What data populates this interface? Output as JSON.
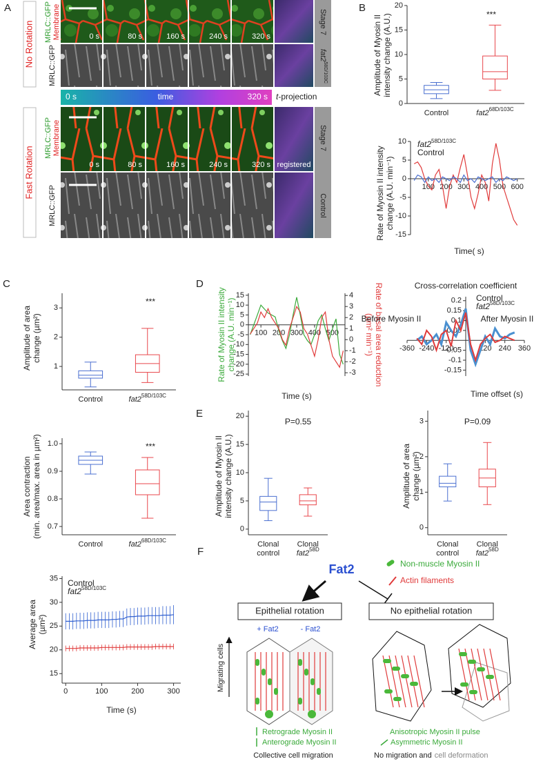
{
  "panel_a": {
    "label": "A",
    "top": {
      "condition": "No Rotation",
      "channel_green": "MRLC::GFP",
      "channel_red": "Membrane",
      "channel_gray": "MRLC::GFP",
      "times": [
        "0 s",
        "80 s",
        "160 s",
        "240 s",
        "320 s"
      ],
      "stage": "Stage 7",
      "genotype": "fat2",
      "genotype_superscript": "58D/103C"
    },
    "time_bar": {
      "start": "0 s",
      "label": "time",
      "end": "320 s",
      "projection_t": "t",
      "projection": "-projection"
    },
    "bottom": {
      "condition": "Fast Rotation",
      "channel_green": "MRLC::GFP",
      "channel_red": "Membrane",
      "channel_gray": "MRLC::GFP",
      "times": [
        "0 s",
        "80 s",
        "160 s",
        "240 s",
        "320 s"
      ],
      "registered": "registered",
      "stage": "Stage 7",
      "genotype": "Control"
    }
  },
  "chart_data": [
    {
      "type": "box",
      "panel_label": "B",
      "ylabel": [
        "Amplitude of Myosin II",
        "intensity change (A.U.)"
      ],
      "categories": [
        "Control",
        "fat2"
      ],
      "category_superscripts": [
        null,
        "68D/103C"
      ],
      "colors": [
        "#4a6fd0",
        "#e8464b"
      ],
      "boxes": [
        {
          "min": 1,
          "q1": 2,
          "median": 2.8,
          "q3": 3.7,
          "max": 4.3
        },
        {
          "min": 2.7,
          "q1": 5,
          "median": 6.5,
          "q3": 9.7,
          "max": 16
        }
      ],
      "ylim": [
        0,
        20
      ],
      "yticks": [
        0,
        5,
        10,
        15,
        20
      ],
      "annotations": [
        "***"
      ]
    },
    {
      "type": "line",
      "ylabel": [
        "Rate of Myosin II intensity",
        "change (A.U. min⁻¹)"
      ],
      "xlabel": "Time( s)",
      "x": [
        20,
        40,
        60,
        80,
        100,
        120,
        140,
        160,
        180,
        200,
        220,
        240,
        260,
        280,
        300,
        320,
        340,
        360,
        380,
        400,
        420,
        440,
        460,
        480,
        500,
        520,
        540,
        560,
        580,
        600
      ],
      "series": [
        {
          "name": "fat2",
          "superscript": "58D/103C",
          "color": "#e03a3a",
          "values": [
            4,
            4.5,
            3,
            0,
            -2,
            -3,
            1,
            2.5,
            -2,
            -8,
            -2,
            1,
            -1,
            3,
            6.5,
            1,
            -5,
            -8,
            -4,
            1,
            -1,
            -6,
            4,
            9.5,
            5,
            -2,
            -5,
            -8,
            -11,
            -12.5
          ]
        },
        {
          "name": "Control",
          "color": "#4a6fd0",
          "values": [
            -0.5,
            1,
            0.5,
            -1,
            0.5,
            -0.5,
            0,
            -1,
            0.5,
            0,
            -0.5,
            0.5,
            0,
            -1,
            1,
            -0.5,
            0,
            -1,
            0.5,
            0,
            -0.5,
            0,
            0.5,
            -1,
            0,
            -0.5,
            0.5,
            0,
            -0.5,
            0
          ]
        }
      ],
      "xlim": [
        0,
        640
      ],
      "xticks": [
        100,
        200,
        300,
        400,
        500,
        600
      ],
      "ylim": [
        -15,
        10
      ],
      "yticks": [
        10,
        5,
        0,
        -5,
        -10,
        -15
      ]
    },
    {
      "type": "box",
      "panel_label": "C",
      "ylabel": [
        "Amplitude of area",
        "change (µm²)"
      ],
      "categories": [
        "Control",
        "fat2"
      ],
      "category_superscripts": [
        null,
        "58D/103C"
      ],
      "colors": [
        "#4a6fd0",
        "#e8464b"
      ],
      "boxes": [
        {
          "min": 0.3,
          "q1": 0.6,
          "median": 0.7,
          "q3": 0.85,
          "max": 1.15
        },
        {
          "min": 0.45,
          "q1": 0.8,
          "median": 1.1,
          "q3": 1.4,
          "max": 2.3
        }
      ],
      "ylim": [
        0.2,
        3.5
      ],
      "yticks": [
        1,
        2,
        3
      ],
      "annotations": [
        "***"
      ]
    },
    {
      "type": "box",
      "ylabel": [
        "Area contraction",
        "(min. area/max. area in µm²)"
      ],
      "categories": [
        "Control",
        "fat2"
      ],
      "category_superscripts": [
        null,
        "68D/103C"
      ],
      "colors": [
        "#4a6fd0",
        "#e8464b"
      ],
      "boxes": [
        {
          "min": 0.89,
          "q1": 0.925,
          "median": 0.94,
          "q3": 0.955,
          "max": 0.97
        },
        {
          "min": 0.73,
          "q1": 0.815,
          "median": 0.855,
          "q3": 0.905,
          "max": 0.95
        }
      ],
      "ylim": [
        0.67,
        1.02
      ],
      "yticks": [
        0.7,
        0.8,
        0.9,
        {
          "value": 1,
          "label": "1.0"
        }
      ],
      "annotations": [
        "***"
      ]
    },
    {
      "type": "line",
      "ylabel": [
        "Average area",
        "(µm²)"
      ],
      "xlabel": "Time (s)",
      "x": [
        0,
        10,
        20,
        30,
        40,
        50,
        60,
        70,
        80,
        90,
        100,
        110,
        120,
        130,
        140,
        150,
        160,
        170,
        180,
        190,
        200,
        210,
        220,
        230,
        240,
        250,
        260,
        270,
        280,
        290,
        300
      ],
      "series": [
        {
          "name": "Control",
          "color": "#2f5fd0",
          "values": [
            26,
            26,
            26,
            26.1,
            26.1,
            26.1,
            26.2,
            26.2,
            26.2,
            26.3,
            26.3,
            26.3,
            26.3,
            26.4,
            26.4,
            26.5,
            26.5,
            26.9,
            27,
            27,
            27.1,
            27.1,
            27.1,
            27.2,
            27.2,
            27.2,
            27.2,
            27.3,
            27.3,
            27.3,
            27.4
          ],
          "errors": [
            1.7,
            1.7,
            1.7,
            1.7,
            1.7,
            1.7,
            1.7,
            1.7,
            1.7,
            1.7,
            1.7,
            1.7,
            1.7,
            1.7,
            1.7,
            1.7,
            1.7,
            1.8,
            1.8,
            1.8,
            1.8,
            1.8,
            1.8,
            1.8,
            1.8,
            1.8,
            1.8,
            1.9,
            1.9,
            1.9,
            2
          ]
        },
        {
          "name": "fat2",
          "superscript": "58D/103C",
          "color": "#e03a3a",
          "values": [
            20.3,
            20.3,
            20.3,
            20.3,
            20.4,
            20.4,
            20.4,
            20.4,
            20.4,
            20.4,
            20.5,
            20.5,
            20.5,
            20.5,
            20.5,
            20.5,
            20.5,
            20.6,
            20.6,
            20.6,
            20.6,
            20.6,
            20.6,
            20.6,
            20.6,
            20.7,
            20.7,
            20.7,
            20.7,
            20.7,
            20.7
          ],
          "errors": [
            0.6,
            0.6,
            0.6,
            0.6,
            0.6,
            0.6,
            0.6,
            0.6,
            0.6,
            0.6,
            0.6,
            0.6,
            0.6,
            0.6,
            0.6,
            0.6,
            0.6,
            0.6,
            0.6,
            0.6,
            0.6,
            0.6,
            0.6,
            0.6,
            0.6,
            0.6,
            0.6,
            0.6,
            0.6,
            0.6,
            0.6
          ]
        }
      ],
      "xlim": [
        -10,
        320
      ],
      "xticks": [
        0,
        100,
        200,
        300
      ],
      "ylim": [
        13,
        35.5
      ],
      "yticks": [
        15,
        20,
        25,
        30,
        35
      ]
    },
    {
      "type": "line",
      "panel_label": "D",
      "ylabel": [
        "Rate of Myosin II intensity",
        "change (A.U. min⁻¹)"
      ],
      "ylabel_color": "#3aaa3a",
      "y2label": [
        "Rate of basal area reduction",
        "(µm² min⁻¹)"
      ],
      "y2label_color": "#e03a3a",
      "xlabel": "Time (s)",
      "x": [
        40,
        60,
        80,
        100,
        120,
        140,
        160,
        180,
        200,
        220,
        240,
        260,
        280,
        300,
        320,
        340,
        360,
        380,
        400,
        420,
        440,
        460,
        480,
        500,
        520,
        540,
        560
      ],
      "series": [
        {
          "name": "Myosin II",
          "color": "#3aaa3a",
          "values": [
            -5,
            0,
            5,
            10,
            8,
            6,
            5,
            4,
            -3,
            -8,
            -12,
            -5,
            5,
            14,
            5,
            -5,
            -8,
            -10,
            -5,
            2,
            5,
            -2,
            -8,
            -2,
            3,
            -15,
            -20
          ]
        },
        {
          "name": "Area",
          "color": "#e03a3a",
          "axis": "y2",
          "values": [
            0.5,
            1,
            1.5,
            2.5,
            2,
            2.8,
            2,
            1.5,
            1,
            0,
            -0.5,
            1,
            2,
            3,
            2.5,
            1,
            0.5,
            -0.5,
            -1.5,
            0,
            2,
            2.5,
            0,
            -1.5,
            -2,
            -2.5,
            -1
          ]
        }
      ],
      "xlim": [
        30,
        570
      ],
      "xticks": [
        100,
        200,
        300,
        400,
        500
      ],
      "ylim": [
        -26,
        16
      ],
      "yticks": [
        15,
        10,
        5,
        0,
        -5,
        -10,
        -15,
        -20,
        -25
      ],
      "y2lim": [
        -3.3,
        4.2
      ],
      "y2ticks": [
        4,
        3,
        2,
        1,
        0,
        -1,
        -2,
        -3
      ]
    },
    {
      "type": "line",
      "title": "Cross-correlation coefficient",
      "annotations": [
        "Before Myosin II",
        "After Myosin II"
      ],
      "xlabel": "Time offset (s)",
      "x": [
        -300,
        -270,
        -240,
        -210,
        -180,
        -150,
        -120,
        -90,
        -60,
        -30,
        0,
        30,
        60,
        90,
        120,
        150,
        180,
        210,
        240,
        270,
        300
      ],
      "series": [
        {
          "name": "Control",
          "color": "#4a90d0",
          "width": 3,
          "values": [
            0,
            0.02,
            -0.02,
            0,
            0.03,
            -0.02,
            0.09,
            0.05,
            0.02,
            0.08,
            0.16,
            -0.05,
            -0.12,
            -0.05,
            0.02,
            -0.02,
            0.06,
            0.02,
            0.01,
            0.03,
            0.04
          ]
        },
        {
          "name": "fat2",
          "superscript": "58D/103C",
          "color": "#e03a3a",
          "width": 2,
          "values": [
            0.01,
            -0.02,
            0.05,
            0.02,
            -0.05,
            0.03,
            0.05,
            -0.03,
            0.1,
            0.05,
            0.14,
            -0.02,
            -0.1,
            -0.02,
            0.01,
            0.03,
            -0.01,
            0,
            0.02,
            0.01,
            0
          ]
        }
      ],
      "xlim": [
        -360,
        360
      ],
      "xticks": [
        -360,
        -240,
        -120,
        120,
        240,
        360
      ],
      "ylim": [
        -0.18,
        0.22
      ],
      "yticks": [
        0.2,
        0.15,
        0.1,
        0.05,
        -0.05,
        -0.1,
        -0.15
      ]
    },
    {
      "type": "box",
      "panel_label": "E",
      "ylabel": [
        "Amplitude of Myosin II",
        "intensity change (A.U.)"
      ],
      "categories": [
        [
          "Clonal",
          "control"
        ],
        [
          "Clonal",
          "fat2"
        ]
      ],
      "category_superscripts": [
        null,
        "58D"
      ],
      "colors": [
        "#4a6fd0",
        "#e8464b"
      ],
      "boxes": [
        {
          "min": 1.5,
          "q1": 3.3,
          "median": 4.8,
          "q3": 5.8,
          "max": 9
        },
        {
          "min": 2.3,
          "q1": 4.3,
          "median": 5,
          "q3": 6.1,
          "max": 7.3
        }
      ],
      "ylim": [
        -1,
        21
      ],
      "yticks": [
        0,
        5,
        10,
        15,
        20
      ],
      "annotations": [
        "P=0.55"
      ]
    },
    {
      "type": "box",
      "ylabel": [
        "Amplitude of area",
        "change (µm²)"
      ],
      "categories": [
        [
          "Clonal",
          "control"
        ],
        [
          "Clonal",
          "fat2"
        ]
      ],
      "category_superscripts": [
        null,
        "58D"
      ],
      "colors": [
        "#4a6fd0",
        "#e8464b"
      ],
      "boxes": [
        {
          "min": 0.75,
          "q1": 1.15,
          "median": 1.25,
          "q3": 1.45,
          "max": 1.8
        },
        {
          "min": 0.65,
          "q1": 1.15,
          "median": 1.4,
          "q3": 1.65,
          "max": 2.4
        }
      ],
      "ylim": [
        -0.2,
        3.3
      ],
      "yticks": [
        0,
        1,
        2,
        3
      ],
      "annotations": [
        "P=0.09"
      ]
    }
  ],
  "panel_f": {
    "label": "F",
    "regulator": "Fat2",
    "legend": [
      "Non-muscle Myosin II",
      "Actin filaments"
    ],
    "left_box": "Epithelial rotation",
    "right_box": "No epithelial rotation",
    "plus": "+ Fat2",
    "minus": "- Fat2",
    "axis": "Migrating cells",
    "left_notes": [
      "Retrograde Myosin II",
      "Anterograde Myosin II"
    ],
    "left_result": "Collective cell migration",
    "right_notes": [
      "Anisotropic Myosin II pulse",
      "Asymmetric Myosin II"
    ],
    "right_result": [
      "No migration and",
      "cell deformation"
    ]
  }
}
